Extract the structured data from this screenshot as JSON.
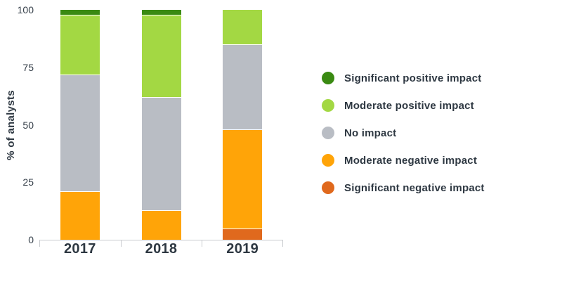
{
  "chart_data": {
    "type": "bar",
    "stacked": true,
    "title": "",
    "ylabel": "% of analysts",
    "xlabel": "",
    "ylim": [
      0,
      100
    ],
    "yticks": [
      0,
      25,
      50,
      75,
      100
    ],
    "grid": false,
    "legend_position": "right",
    "categories": [
      "2017",
      "2018",
      "2019"
    ],
    "series": [
      {
        "name": "Significant positive impact",
        "color": "#3a8a12",
        "values": [
          2,
          2,
          0
        ]
      },
      {
        "name": "Moderate positive impact",
        "color": "#a3d843",
        "values": [
          26,
          36,
          15
        ]
      },
      {
        "name": "No impact",
        "color": "#b9bdc4",
        "values": [
          51,
          49,
          37
        ]
      },
      {
        "name": "Moderate negative impact",
        "color": "#ffa408",
        "values": [
          21,
          13,
          43
        ]
      },
      {
        "name": "Significant negative impact",
        "color": "#e0691d",
        "values": [
          0,
          0,
          5
        ]
      }
    ]
  },
  "colors": {
    "axis_line": "#c9cbcf",
    "text": "#2e3842",
    "background": "#ffffff"
  }
}
